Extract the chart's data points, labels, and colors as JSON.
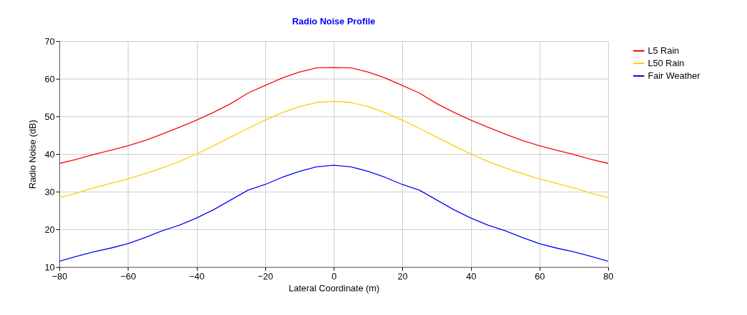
{
  "chart_data": {
    "type": "line",
    "title": "Radio Noise Profile",
    "xlabel": "Lateral Coordinate (m)",
    "ylabel": "Radio Noise (dB)",
    "x": [
      -80,
      -75,
      -70,
      -65,
      -60,
      -55,
      -50,
      -45,
      -40,
      -35,
      -30,
      -25,
      -20,
      -15,
      -10,
      -5,
      0,
      5,
      10,
      15,
      20,
      25,
      30,
      35,
      40,
      45,
      50,
      55,
      60,
      65,
      70,
      75,
      80
    ],
    "series": [
      {
        "name": "L5 Rain",
        "color": "#ff0000",
        "values": [
          37.5,
          38.6,
          39.9,
          41.0,
          42.2,
          43.6,
          45.3,
          47.1,
          49.0,
          51.1,
          53.4,
          56.2,
          58.2,
          60.2,
          61.8,
          62.9,
          63,
          62.9,
          61.8,
          60.2,
          58.2,
          56.2,
          53.4,
          51.1,
          49.0,
          47.1,
          45.3,
          43.6,
          42.2,
          41.0,
          39.9,
          38.6,
          37.5
        ]
      },
      {
        "name": "L50 Rain",
        "color": "#ffcc00",
        "values": [
          28.4,
          29.6,
          31.0,
          32.2,
          33.4,
          34.8,
          36.3,
          38.0,
          40.0,
          42.2,
          44.5,
          46.8,
          49.0,
          51.0,
          52.6,
          53.7,
          54,
          53.7,
          52.6,
          51.0,
          49.0,
          46.8,
          44.5,
          42.2,
          40.0,
          38.0,
          36.3,
          34.8,
          33.4,
          32.2,
          31.0,
          29.6,
          28.4
        ]
      },
      {
        "name": "Fair Weather",
        "color": "#0000ff",
        "values": [
          11.5,
          12.8,
          14.0,
          15.0,
          16.2,
          17.8,
          19.6,
          21.1,
          23.0,
          25.2,
          27.8,
          30.4,
          31.9,
          33.8,
          35.4,
          36.6,
          37,
          36.6,
          35.4,
          33.8,
          31.9,
          30.4,
          27.8,
          25.2,
          23.0,
          21.1,
          19.6,
          17.8,
          16.2,
          15.0,
          14.0,
          12.8,
          11.5
        ]
      }
    ],
    "xlim": [
      -80,
      80
    ],
    "xticks": [
      -80,
      -60,
      -40,
      -20,
      0,
      20,
      40,
      60,
      80
    ],
    "ylim": [
      10,
      70
    ],
    "yticks": [
      10,
      20,
      30,
      40,
      50,
      60,
      70
    ],
    "grid": true,
    "legend": "right",
    "marker": "none",
    "line_style": "solid"
  }
}
